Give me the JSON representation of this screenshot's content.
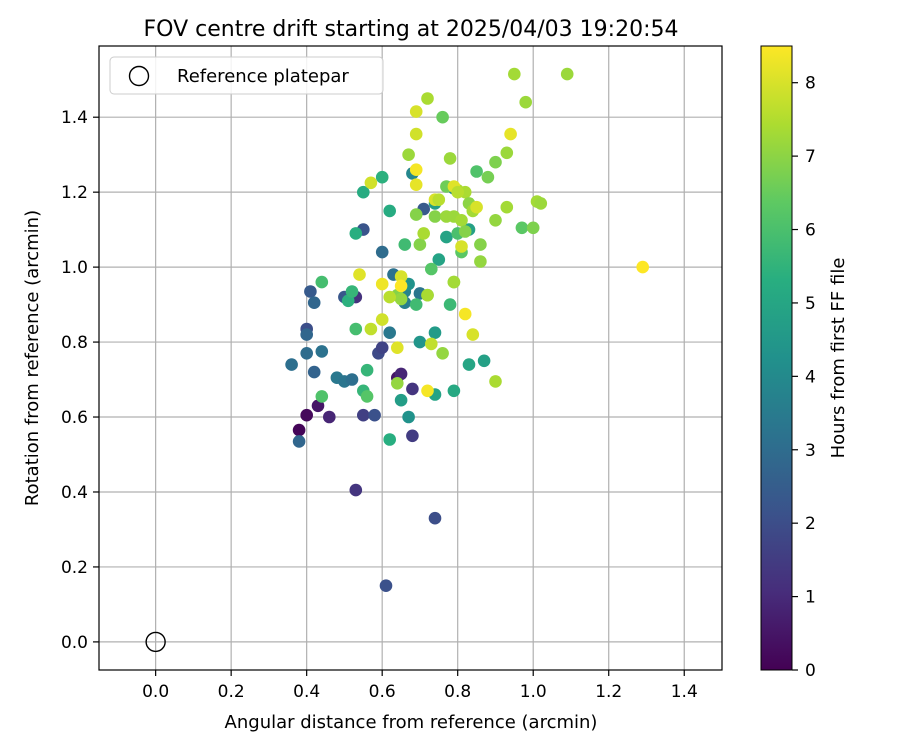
{
  "chart_data": {
    "type": "scatter",
    "title": "FOV centre drift starting at 2025/04/03 19:20:54",
    "xlabel": "Angular distance from reference (arcmin)",
    "ylabel": "Rotation from reference (arcmin)",
    "xlim": [
      -0.15,
      1.5
    ],
    "ylim": [
      -0.075,
      1.59
    ],
    "xticks": [
      0.0,
      0.2,
      0.4,
      0.6,
      0.8,
      1.0,
      1.2,
      1.4
    ],
    "xtick_labels": [
      "0.0",
      "0.2",
      "0.4",
      "0.6",
      "0.8",
      "1.0",
      "1.2",
      "1.4"
    ],
    "yticks": [
      0.0,
      0.2,
      0.4,
      0.6,
      0.8,
      1.0,
      1.2,
      1.4
    ],
    "ytick_labels": [
      "0.0",
      "0.2",
      "0.4",
      "0.6",
      "0.8",
      "1.0",
      "1.2",
      "1.4"
    ],
    "grid": true,
    "legend": {
      "placement": "upper-left",
      "entries": [
        {
          "label": "Reference platepar",
          "marker": "open-circle"
        }
      ]
    },
    "reference_point": {
      "x": 0.0,
      "y": 0.0
    },
    "colorbar": {
      "label": "Hours from first FF file",
      "colormap": "viridis",
      "range": [
        0,
        8.5
      ],
      "ticks": [
        0,
        1,
        2,
        3,
        4,
        5,
        6,
        7,
        8
      ],
      "tick_labels": [
        "0",
        "1",
        "2",
        "3",
        "4",
        "5",
        "6",
        "7",
        "8"
      ]
    },
    "series": [
      {
        "points": [
          [
            0.38,
            0.565,
            0.1
          ],
          [
            0.4,
            0.605,
            0.2
          ],
          [
            0.43,
            0.63,
            0.5
          ],
          [
            0.46,
            0.6,
            0.9
          ],
          [
            0.53,
            0.92,
            1.2
          ],
          [
            0.64,
            0.705,
            0.5
          ],
          [
            0.65,
            0.715,
            0.9
          ],
          [
            0.53,
            0.405,
            1.3
          ],
          [
            0.68,
            0.55,
            1.5
          ],
          [
            0.68,
            0.675,
            1.3
          ],
          [
            0.74,
            0.33,
            2.0
          ],
          [
            0.61,
            0.15,
            2.1
          ],
          [
            0.55,
            0.605,
            1.6
          ],
          [
            0.58,
            0.605,
            2.1
          ],
          [
            0.59,
            0.77,
            1.9
          ],
          [
            0.6,
            0.785,
            1.7
          ],
          [
            0.5,
            0.92,
            2.3
          ],
          [
            0.55,
            1.1,
            2.2
          ],
          [
            0.38,
            0.535,
            2.8
          ],
          [
            0.4,
            0.835,
            2.0
          ],
          [
            0.41,
            0.935,
            2.4
          ],
          [
            0.42,
            0.905,
            2.8
          ],
          [
            0.42,
            0.72,
            2.7
          ],
          [
            0.36,
            0.74,
            3.1
          ],
          [
            0.4,
            0.77,
            3.0
          ],
          [
            0.4,
            0.82,
            2.8
          ],
          [
            0.44,
            0.775,
            3.2
          ],
          [
            0.48,
            0.705,
            3.4
          ],
          [
            0.5,
            0.695,
            3.3
          ],
          [
            0.52,
            0.7,
            3.1
          ],
          [
            0.62,
            0.825,
            3.4
          ],
          [
            0.6,
            1.04,
            3.0
          ],
          [
            0.63,
            0.98,
            3.2
          ],
          [
            0.66,
            0.935,
            3.8
          ],
          [
            0.66,
            0.905,
            3.6
          ],
          [
            0.68,
            1.25,
            3.9
          ],
          [
            0.7,
            0.93,
            3.3
          ],
          [
            0.71,
            1.155,
            2.4
          ],
          [
            0.67,
            0.955,
            4.3
          ],
          [
            0.67,
            0.6,
            4.3
          ],
          [
            0.65,
            0.645,
            4.7
          ],
          [
            0.7,
            0.8,
            4.4
          ],
          [
            0.74,
            0.825,
            4.6
          ],
          [
            0.75,
            1.02,
            4.9
          ],
          [
            0.74,
            0.66,
            4.9
          ],
          [
            0.74,
            1.17,
            4.7
          ],
          [
            0.79,
            1.21,
            3.9
          ],
          [
            0.79,
            0.67,
            5.1
          ],
          [
            0.77,
            1.08,
            4.9
          ],
          [
            0.83,
            1.1,
            4.8
          ],
          [
            0.83,
            0.74,
            5.0
          ],
          [
            0.87,
            0.75,
            4.8
          ],
          [
            0.62,
            0.54,
            5.3
          ],
          [
            0.51,
            0.91,
            5.4
          ],
          [
            0.52,
            0.935,
            5.6
          ],
          [
            0.53,
            1.09,
            5.3
          ],
          [
            0.55,
            1.2,
            5.2
          ],
          [
            0.62,
            1.15,
            5.2
          ],
          [
            0.6,
            1.24,
            5.4
          ],
          [
            0.44,
            0.96,
            5.9
          ],
          [
            0.44,
            0.655,
            6.1
          ],
          [
            0.53,
            0.835,
            5.9
          ],
          [
            0.55,
            0.67,
            5.6
          ],
          [
            0.56,
            0.725,
            5.6
          ],
          [
            0.56,
            0.655,
            6.2
          ],
          [
            0.66,
            1.06,
            5.8
          ],
          [
            0.69,
            0.9,
            5.8
          ],
          [
            0.72,
            0.925,
            6.1
          ],
          [
            0.73,
            0.995,
            6.2
          ],
          [
            0.78,
            0.9,
            5.7
          ],
          [
            0.8,
            1.09,
            6.0
          ],
          [
            0.81,
            1.04,
            6.3
          ],
          [
            0.85,
            1.255,
            6.1
          ],
          [
            0.88,
            1.24,
            6.7
          ],
          [
            0.9,
            1.28,
            6.8
          ],
          [
            0.97,
            1.105,
            6.3
          ],
          [
            1.0,
            1.105,
            6.8
          ],
          [
            0.64,
            0.925,
            6.9
          ],
          [
            0.64,
            0.69,
            7.1
          ],
          [
            0.65,
            0.915,
            7.1
          ],
          [
            0.67,
            1.3,
            7.2
          ],
          [
            0.69,
            1.14,
            6.9
          ],
          [
            0.7,
            1.06,
            6.9
          ],
          [
            0.71,
            1.09,
            7.4
          ],
          [
            0.72,
            0.925,
            7.4
          ],
          [
            0.73,
            0.795,
            7.7
          ],
          [
            0.74,
            1.135,
            6.9
          ],
          [
            0.76,
            1.4,
            6.5
          ],
          [
            0.76,
            0.77,
            7.1
          ],
          [
            0.77,
            1.215,
            6.6
          ],
          [
            0.77,
            1.135,
            7.2
          ],
          [
            0.78,
            1.29,
            7.2
          ],
          [
            0.79,
            1.135,
            7.2
          ],
          [
            0.79,
            0.96,
            7.0
          ],
          [
            0.79,
            0.96,
            7.3
          ],
          [
            0.8,
            1.205,
            7.4
          ],
          [
            0.81,
            1.125,
            7.3
          ],
          [
            0.82,
            1.2,
            7.4
          ],
          [
            0.82,
            1.095,
            6.9
          ],
          [
            0.83,
            1.17,
            7.0
          ],
          [
            0.84,
            1.15,
            7.3
          ],
          [
            0.86,
            1.06,
            6.9
          ],
          [
            0.86,
            1.015,
            7.1
          ],
          [
            0.9,
            0.695,
            7.4
          ],
          [
            0.9,
            1.125,
            7.1
          ],
          [
            0.93,
            1.305,
            7.2
          ],
          [
            0.93,
            1.16,
            7.3
          ],
          [
            0.95,
            1.515,
            7.3
          ],
          [
            0.98,
            1.44,
            7.2
          ],
          [
            1.01,
            1.175,
            7.3
          ],
          [
            1.02,
            1.17,
            7.2
          ],
          [
            1.09,
            1.515,
            7.2
          ],
          [
            0.72,
            1.45,
            7.4
          ],
          [
            0.62,
            0.92,
            7.6
          ],
          [
            0.64,
            0.785,
            8.1
          ],
          [
            0.57,
            0.835,
            7.7
          ],
          [
            0.57,
            1.225,
            7.9
          ],
          [
            0.54,
            0.98,
            8.1
          ],
          [
            0.6,
            0.955,
            8.3
          ],
          [
            0.6,
            0.86,
            7.9
          ],
          [
            0.65,
            0.975,
            8.0
          ],
          [
            0.65,
            0.95,
            8.5
          ],
          [
            0.69,
            1.415,
            8.0
          ],
          [
            0.69,
            1.26,
            8.4
          ],
          [
            0.69,
            1.22,
            8.2
          ],
          [
            0.69,
            1.355,
            7.9
          ],
          [
            0.72,
            0.67,
            8.4
          ],
          [
            0.74,
            1.18,
            8.0
          ],
          [
            0.75,
            1.18,
            7.6
          ],
          [
            0.79,
            1.215,
            8.1
          ],
          [
            0.81,
            1.055,
            8.0
          ],
          [
            0.82,
            0.875,
            8.4
          ],
          [
            0.84,
            0.82,
            8.0
          ],
          [
            0.85,
            1.16,
            8.0
          ],
          [
            0.94,
            1.355,
            8.2
          ],
          [
            1.29,
            1.0,
            8.5
          ],
          [
            0.8,
            1.2,
            7.6
          ]
        ]
      }
    ]
  }
}
